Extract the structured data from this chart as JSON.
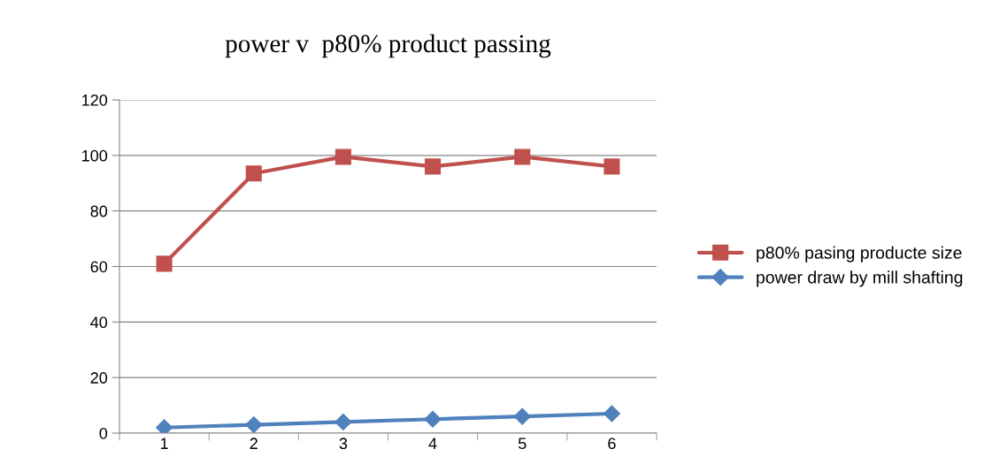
{
  "chart_data": {
    "type": "line",
    "title": "power v  p80% product passing",
    "categories": [
      "1",
      "2",
      "3",
      "4",
      "5",
      "6"
    ],
    "series": [
      {
        "name": "p80% pasing producte size",
        "color": "#c0504d",
        "marker": "square",
        "values": [
          61,
          93.5,
          99.5,
          96,
          99.5,
          96
        ]
      },
      {
        "name": "power draw by mill shafting",
        "color": "#4f81bd",
        "marker": "diamond",
        "values": [
          2,
          3,
          4,
          5,
          6,
          7
        ]
      }
    ],
    "ylim": [
      0,
      120
    ],
    "yticks": [
      0,
      20,
      40,
      60,
      80,
      100,
      120
    ],
    "grid": "y",
    "legend": "right"
  }
}
